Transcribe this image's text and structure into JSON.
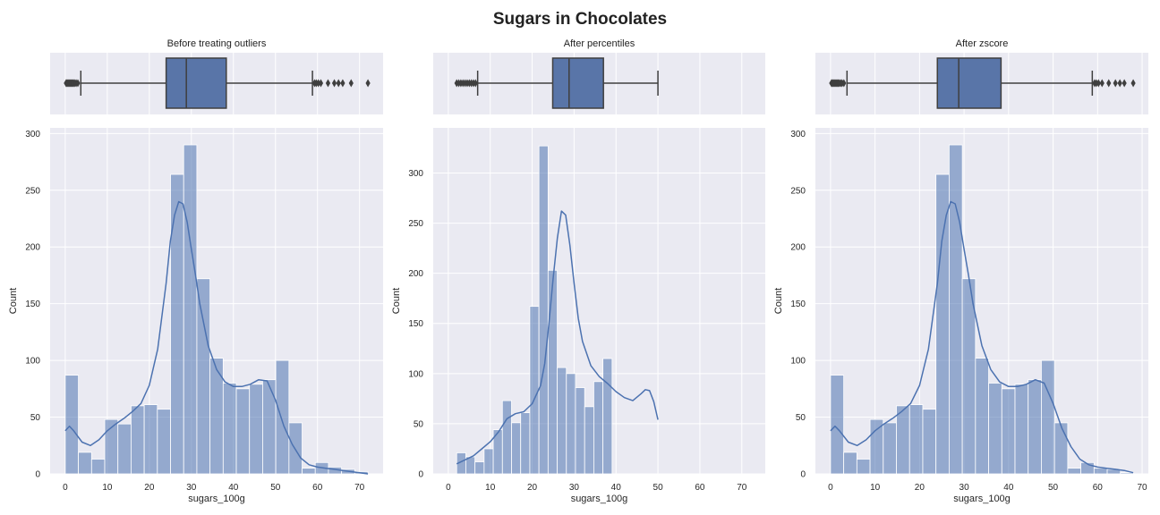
{
  "figure_title": "Sugars in Chocolates",
  "colors": {
    "axes_bg": "#EAEAF2",
    "grid": "#FFFFFF",
    "bar_fill": "#4C72B0",
    "bar_alpha": 0.55,
    "kde_line": "#4C72B0",
    "box_fill": "#5975A8",
    "box_edge": "#3F3F3F"
  },
  "chart_data": [
    {
      "type": "bar",
      "title": "Before treating outliers",
      "xlabel": "sugars_100g",
      "ylabel": "Count",
      "xlim": [
        -3.6,
        75.6
      ],
      "ylim": [
        0,
        305
      ],
      "xticks": [
        0,
        10,
        20,
        30,
        40,
        50,
        60,
        70
      ],
      "yticks": [
        0,
        50,
        100,
        150,
        200,
        250,
        300
      ],
      "grid": true,
      "bins": {
        "edges": [
          0,
          3.13,
          6.26,
          9.39,
          12.52,
          15.65,
          18.78,
          21.91,
          25.04,
          28.17,
          31.3,
          34.43,
          37.56,
          40.69,
          43.82,
          46.95,
          50.08,
          53.21,
          56.34,
          59.47,
          62.6,
          65.73,
          68.86,
          72.0
        ],
        "counts": [
          87,
          19,
          13,
          48,
          44,
          60,
          61,
          57,
          264,
          290,
          172,
          102,
          80,
          75,
          79,
          83,
          100,
          45,
          5,
          10,
          6,
          4,
          2
        ]
      },
      "kde": {
        "x": [
          0,
          1,
          2,
          4,
          6,
          8,
          10,
          12,
          14,
          16,
          18,
          20,
          22,
          24,
          25,
          26,
          27,
          28,
          29,
          30,
          31,
          32,
          34,
          36,
          38,
          40,
          42,
          44,
          46,
          48,
          50,
          52,
          54,
          56,
          58,
          60,
          62,
          64,
          66,
          68,
          70,
          72
        ],
        "y": [
          38,
          42,
          38,
          28,
          25,
          30,
          38,
          44,
          49,
          55,
          62,
          78,
          110,
          168,
          205,
          228,
          240,
          238,
          222,
          198,
          175,
          150,
          113,
          92,
          81,
          77,
          77,
          79,
          83,
          82,
          65,
          42,
          26,
          14,
          8,
          6,
          5,
          4,
          3,
          2,
          1,
          0
        ]
      },
      "box": {
        "whisker_low": 3.7,
        "q1": 24.0,
        "median": 28.8,
        "q3": 38.3,
        "whisker_high": 58.8,
        "outliers": [
          0.2,
          0.4,
          0.6,
          0.8,
          1.0,
          1.2,
          1.4,
          1.6,
          1.8,
          2.0,
          2.3,
          2.6,
          3.0,
          59.3,
          59.7,
          60.2,
          60.8,
          62.5,
          64.0,
          65.0,
          66.0,
          68.0,
          72.0
        ]
      }
    },
    {
      "type": "bar",
      "title": "After percentiles",
      "xlabel": "sugars_100g",
      "ylabel": "Count",
      "xlim": [
        -3.6,
        75.6
      ],
      "ylim": [
        0,
        345
      ],
      "xticks": [
        0,
        10,
        20,
        30,
        40,
        50,
        60,
        70
      ],
      "yticks": [
        0,
        50,
        100,
        150,
        200,
        250,
        300
      ],
      "grid": true,
      "bins": {
        "edges": [
          2.0,
          4.18,
          6.36,
          8.54,
          10.72,
          12.9,
          15.08,
          17.26,
          19.44,
          21.62,
          23.8,
          25.98,
          28.16,
          30.34,
          32.52,
          34.7,
          36.88,
          39.06,
          41.24,
          43.42,
          45.6,
          47.78,
          50.0
        ],
        "counts": [
          21,
          17,
          12,
          25,
          44,
          73,
          51,
          61,
          167,
          327,
          203,
          106,
          100,
          86,
          67,
          92,
          115,
          0,
          0,
          0,
          0,
          0
        ]
      },
      "kde": {
        "x": [
          2,
          4,
          6,
          8,
          10,
          12,
          14,
          16,
          18,
          20,
          22,
          23,
          24,
          25,
          26,
          27,
          28,
          29,
          30,
          31,
          32,
          34,
          36,
          38,
          40,
          42,
          44,
          46,
          47,
          48,
          49,
          50
        ],
        "y": [
          10,
          14,
          18,
          25,
          32,
          42,
          55,
          60,
          62,
          70,
          88,
          110,
          150,
          195,
          235,
          262,
          258,
          228,
          190,
          155,
          132,
          108,
          97,
          90,
          82,
          76,
          73,
          80,
          84,
          83,
          72,
          54
        ]
      },
      "box": {
        "whisker_low": 7.0,
        "q1": 24.9,
        "median": 28.8,
        "q3": 37.0,
        "whisker_high": 50.0,
        "outliers": [
          2.0,
          2.5,
          3.0,
          3.5,
          4.0,
          4.5,
          5.0,
          5.5,
          6.0,
          6.5
        ]
      }
    },
    {
      "type": "bar",
      "title": "After zscore",
      "xlabel": "sugars_100g",
      "ylabel": "Count",
      "xlim": [
        -3.4,
        71.4
      ],
      "ylim": [
        0,
        305
      ],
      "xticks": [
        0,
        10,
        20,
        30,
        40,
        50,
        60,
        70
      ],
      "yticks": [
        0,
        50,
        100,
        150,
        200,
        250,
        300
      ],
      "grid": true,
      "bins": {
        "edges": [
          0,
          2.96,
          5.92,
          8.88,
          11.84,
          14.8,
          17.76,
          20.72,
          23.68,
          26.64,
          29.6,
          32.56,
          35.52,
          38.48,
          41.44,
          44.4,
          47.36,
          50.32,
          53.28,
          56.24,
          59.2,
          62.16,
          65.12,
          68.0
        ],
        "counts": [
          87,
          19,
          13,
          48,
          45,
          60,
          61,
          57,
          264,
          290,
          172,
          102,
          80,
          75,
          79,
          83,
          100,
          45,
          5,
          10,
          5,
          4,
          1
        ]
      },
      "kde": {
        "x": [
          0,
          1,
          2,
          4,
          6,
          8,
          10,
          12,
          14,
          16,
          18,
          20,
          22,
          24,
          25,
          26,
          27,
          28,
          29,
          30,
          31,
          32,
          34,
          36,
          38,
          40,
          42,
          44,
          46,
          48,
          50,
          52,
          54,
          56,
          58,
          60,
          62,
          64,
          66,
          68
        ],
        "y": [
          38,
          42,
          38,
          28,
          25,
          30,
          38,
          44,
          49,
          55,
          62,
          78,
          110,
          168,
          205,
          228,
          240,
          238,
          222,
          198,
          175,
          150,
          113,
          92,
          81,
          77,
          77,
          79,
          83,
          80,
          62,
          40,
          24,
          13,
          8,
          6,
          5,
          4,
          3,
          1
        ]
      },
      "box": {
        "whisker_low": 3.7,
        "q1": 24.0,
        "median": 28.8,
        "q3": 38.3,
        "whisker_high": 58.8,
        "outliers": [
          0.2,
          0.4,
          0.6,
          0.8,
          1.0,
          1.2,
          1.4,
          1.6,
          1.8,
          2.0,
          2.3,
          2.6,
          3.0,
          59.3,
          59.7,
          60.2,
          61.0,
          62.5,
          64.0,
          65.0,
          66.0,
          68.0
        ]
      }
    }
  ]
}
